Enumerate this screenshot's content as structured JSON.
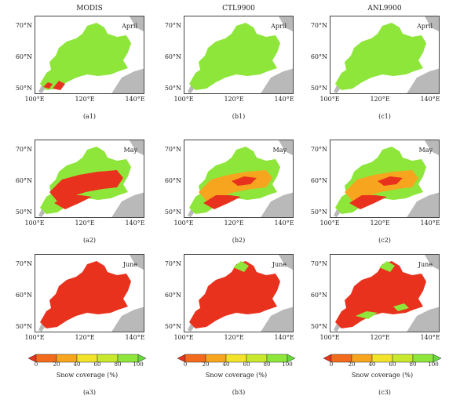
{
  "columns": [
    {
      "title": "MODIS"
    },
    {
      "title": "CTL9900"
    },
    {
      "title": "ANL9900"
    }
  ],
  "rows": [
    {
      "month": "April",
      "labels": [
        "(a1)",
        "(b1)",
        "(c1)"
      ]
    },
    {
      "month": "May",
      "labels": [
        "(a2)",
        "(b2)",
        "(c2)"
      ]
    },
    {
      "month": "June",
      "labels": [
        "(a3)",
        "(b3)",
        "(c3)"
      ]
    }
  ],
  "axes": {
    "y_ticks": [
      "70°N",
      "60°N",
      "50°N"
    ],
    "x_ticks": [
      "100°E",
      "120°E",
      "140°E"
    ]
  },
  "colorbar": {
    "title": "Snow coverage (%)",
    "ticks": [
      "0",
      "20",
      "40",
      "60",
      "80",
      "100"
    ],
    "colors": [
      "#e8321e",
      "#f26a1c",
      "#f7a51f",
      "#f2e22a",
      "#c8e82e",
      "#8ee63a",
      "#66d93a"
    ]
  },
  "colors": {
    "land_gray": "#b9b9b9",
    "high": "#e8321e",
    "mid": "#f7a51f",
    "low": "#8ee63a"
  }
}
